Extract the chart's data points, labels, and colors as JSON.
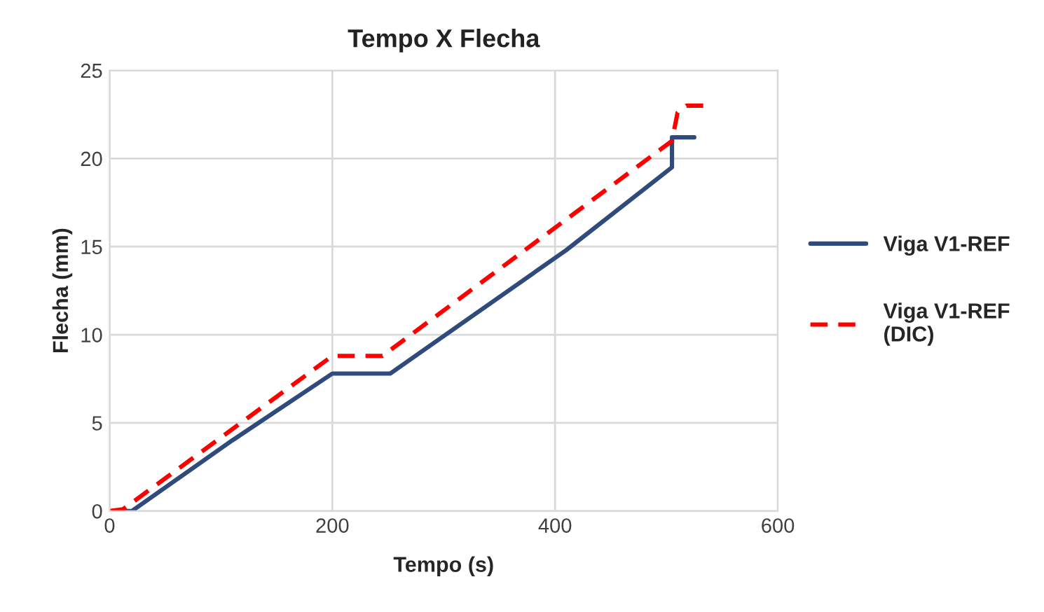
{
  "chart_data": {
    "type": "line",
    "title": "Tempo X Flecha",
    "xlabel": "Tempo (s)",
    "ylabel": "Flecha (mm)",
    "xlim": [
      0,
      600
    ],
    "xticks": [
      0,
      200,
      400,
      600
    ],
    "ylim": [
      0,
      25
    ],
    "yticks": [
      0,
      5,
      10,
      15,
      20,
      25
    ],
    "grid": true,
    "legend": "right",
    "marker": "none",
    "series": [
      {
        "name": "Viga V1-REF",
        "color": "#2f4b7c",
        "line_style": "solid",
        "x": [
          8,
          20,
          110,
          200,
          252,
          410,
          505,
          505,
          525
        ],
        "values": [
          0,
          0,
          4,
          7.8,
          7.8,
          14.8,
          19.5,
          21.2,
          21.2
        ]
      },
      {
        "name": "Viga V1-REF\n(DIC)",
        "color": "#ff0000",
        "line_style": "dashed",
        "x": [
          0,
          12,
          200,
          245,
          505,
          510,
          518,
          535
        ],
        "values": [
          0,
          0.1,
          8.8,
          8.8,
          21,
          22.6,
          23,
          23
        ]
      }
    ]
  }
}
